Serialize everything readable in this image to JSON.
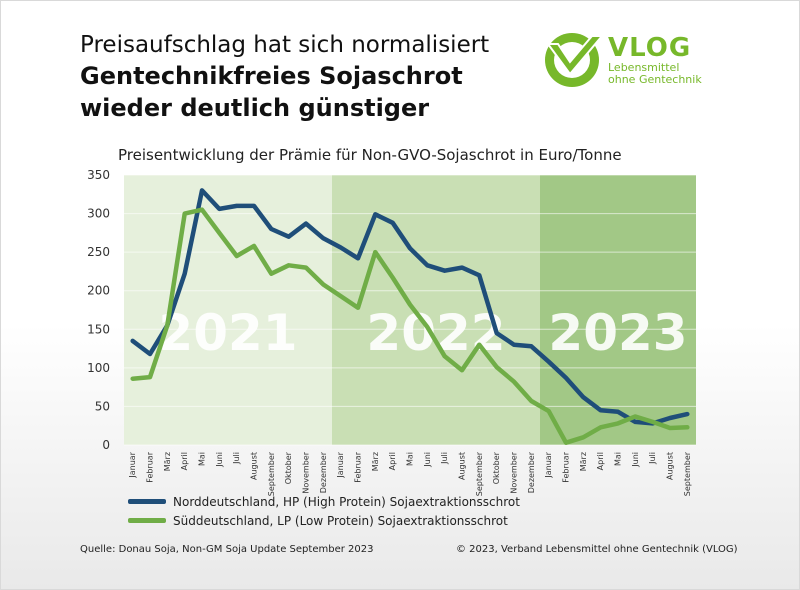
{
  "headline": {
    "subtitle": "Preisaufschlag hat sich normalisiert",
    "title_line1": "Gentechnikfreies Sojaschrot",
    "title_line2": "wieder deutlich günstiger"
  },
  "logo": {
    "name": "VLOG",
    "tagline_line1": "Lebensmittel",
    "tagline_line2": "ohne Gentechnik",
    "icon": "vlog-checkmark-logo"
  },
  "colors": {
    "north": "#1f4e79",
    "south": "#70ad47",
    "logo_green": "#77b82a",
    "band_2021": "#e6f0dc",
    "band_2022": "#c9dfb4",
    "band_2023": "#a2c886"
  },
  "chart_data": {
    "type": "line",
    "title": "Preisentwicklung der Prämie für Non-GVO-Sojaschrot in Euro/Tonne",
    "xlabel": "",
    "ylabel": "",
    "ylim": [
      0,
      350
    ],
    "yticks": [
      0,
      50,
      100,
      150,
      200,
      250,
      300,
      350
    ],
    "grid": true,
    "legend_position": "bottom",
    "categories": [
      "Januar",
      "Februar",
      "März",
      "April",
      "Mai",
      "Juni",
      "Juli",
      "August",
      "September",
      "Oktober",
      "November",
      "Dezember",
      "Januar",
      "Februar",
      "März",
      "April",
      "Mai",
      "Juni",
      "Juli",
      "August",
      "September",
      "Oktober",
      "November",
      "Dezember",
      "Januar",
      "Februar",
      "März",
      "April",
      "Mai",
      "Juni",
      "Juli",
      "August",
      "September"
    ],
    "year_bands": [
      {
        "label": "2021",
        "start": 0,
        "end": 11
      },
      {
        "label": "2022",
        "start": 12,
        "end": 23
      },
      {
        "label": "2023",
        "start": 24,
        "end": 32
      }
    ],
    "series": [
      {
        "name": "Norddeutschland, HP (High Protein) Sojaextraktionsschrot",
        "color": "#1f4e79",
        "values": [
          135,
          118,
          155,
          222,
          330,
          306,
          310,
          310,
          280,
          270,
          287,
          268,
          256,
          242,
          299,
          288,
          255,
          233,
          226,
          230,
          220,
          145,
          130,
          128,
          108,
          87,
          62,
          45,
          43,
          30,
          28,
          35,
          40
        ]
      },
      {
        "name": "Süddeutschland, LP (Low Protein) Sojaextraktionsschrot",
        "color": "#70ad47",
        "values": [
          86,
          88,
          155,
          300,
          305,
          275,
          245,
          258,
          222,
          233,
          230,
          208,
          193,
          178,
          250,
          217,
          182,
          153,
          115,
          97,
          130,
          101,
          82,
          57,
          44,
          3,
          10,
          23,
          28,
          37,
          30,
          22,
          23
        ]
      }
    ]
  },
  "footer": {
    "source": "Quelle: Donau Soja, Non-GM Soja Update September  2023",
    "copyright": "© 2023, Verband  Lebensmittel  ohne Gentechnik  (VLOG)"
  }
}
